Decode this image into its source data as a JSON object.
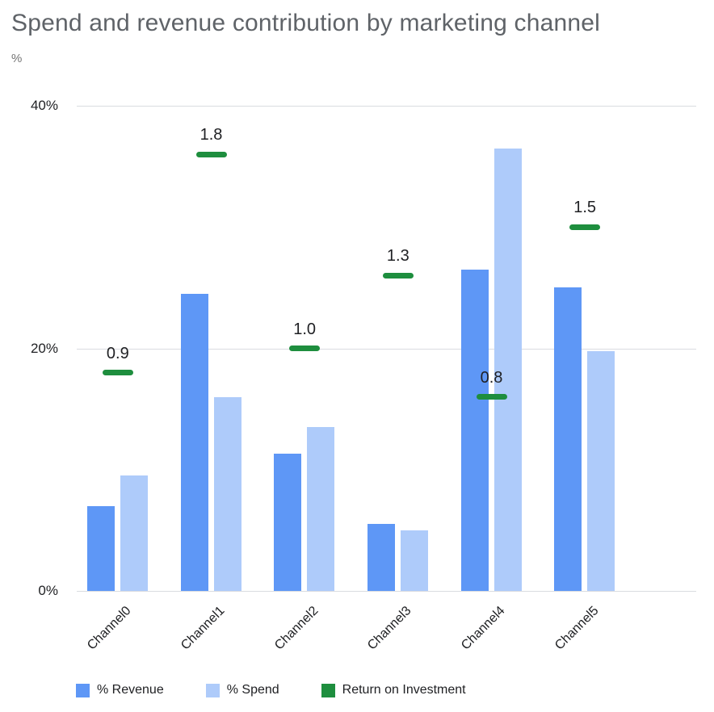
{
  "header": {
    "title": "Spend and revenue contribution by marketing channel",
    "axis_unit": "%"
  },
  "chart_data": {
    "type": "bar",
    "title": "Spend and revenue contribution by marketing channel",
    "categories": [
      "Channel0",
      "Channel1",
      "Channel2",
      "Channel3",
      "Channel4",
      "Channel5"
    ],
    "series": [
      {
        "name": "% Revenue",
        "color": "#5e97f6",
        "values": [
          7,
          24.5,
          11.3,
          5.5,
          26.5,
          25
        ]
      },
      {
        "name": "% Spend",
        "color": "#aecbfa",
        "values": [
          9.5,
          16,
          13.5,
          5,
          36.5,
          19.8
        ]
      }
    ],
    "roi_series": {
      "name": "Return on Investment",
      "color": "#1e8e3e",
      "values": [
        0.9,
        1.8,
        1.0,
        1.3,
        0.8,
        1.5
      ],
      "labels": [
        "0.9",
        "1.8",
        "1.0",
        "1.3",
        "0.8",
        "1.5"
      ],
      "scale": 20
    },
    "ylabel": "%",
    "yticks": [
      "0%",
      "20%",
      "40%"
    ],
    "ylim": [
      0,
      40
    ],
    "grid": true,
    "legend_position": "bottom"
  },
  "legend": {
    "items": [
      {
        "label": "% Revenue",
        "color": "#5e97f6"
      },
      {
        "label": "% Spend",
        "color": "#aecbfa"
      },
      {
        "label": "Return on Investment",
        "color": "#1e8e3e"
      }
    ]
  }
}
